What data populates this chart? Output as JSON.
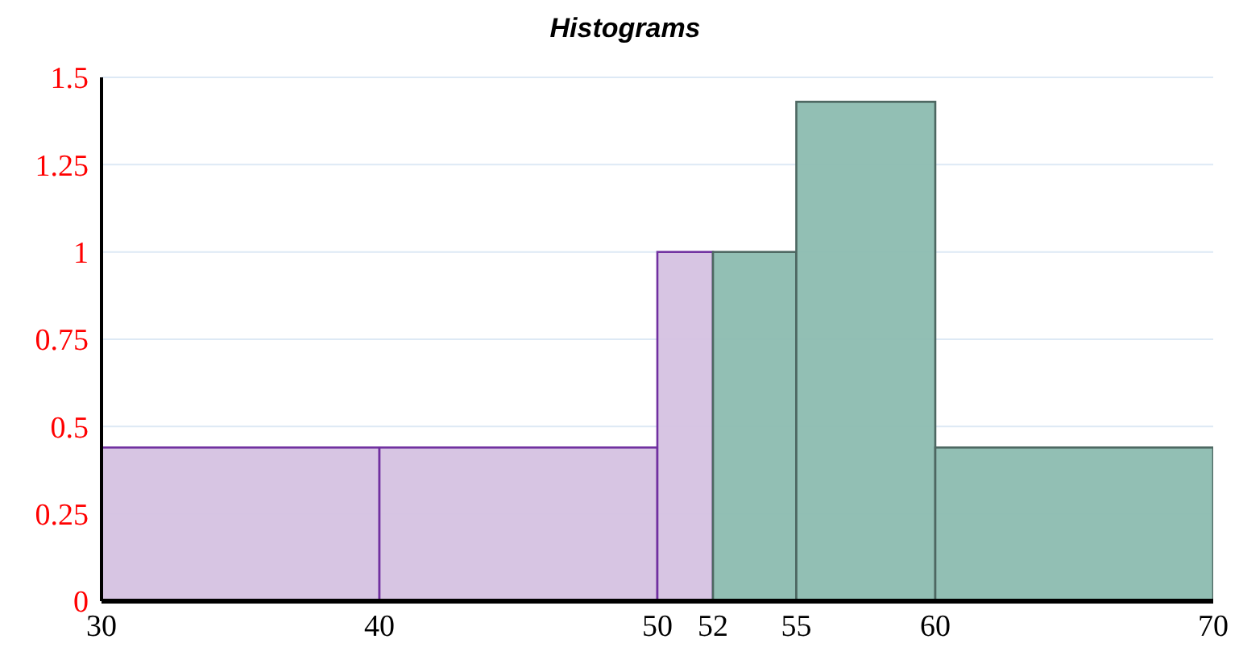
{
  "chart_data": {
    "type": "histogram",
    "title": "Histograms",
    "bins": [
      30,
      40,
      50,
      52,
      55,
      60,
      70
    ],
    "series": [
      {
        "color": "#d5c2e2",
        "values": [
          0.44,
          0.44,
          1,
          null,
          null,
          null
        ]
      },
      {
        "color": "#8cbcb0",
        "values": [
          null,
          null,
          null,
          1,
          1.43,
          0.44
        ]
      }
    ],
    "xlim": [
      30,
      70
    ],
    "xticks": [
      30,
      40,
      50,
      52,
      55,
      60,
      70
    ],
    "ylim": [
      0,
      1.5
    ],
    "yticks": [
      0,
      0.25,
      0.5,
      0.75,
      1,
      1.25,
      1.5
    ],
    "grid": "y"
  }
}
